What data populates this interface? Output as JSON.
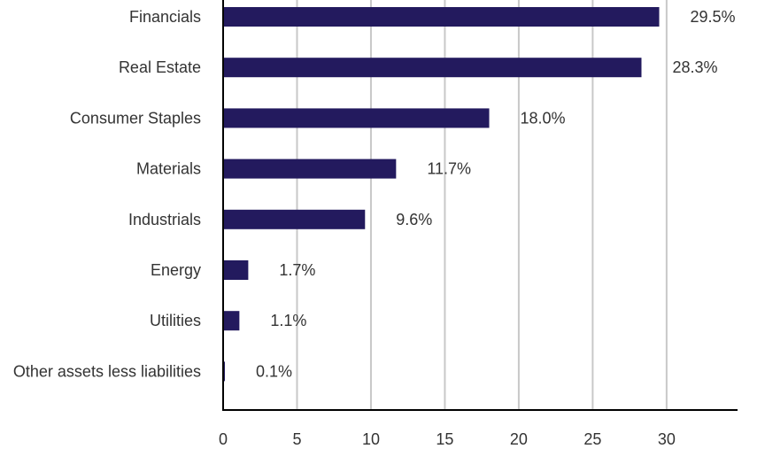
{
  "chart_data": {
    "type": "bar",
    "orientation": "horizontal",
    "categories": [
      "Financials",
      "Real Estate",
      "Consumer Staples",
      "Materials",
      "Industrials",
      "Energy",
      "Utilities",
      "Other assets less liabilities"
    ],
    "values": [
      29.5,
      28.3,
      18.0,
      11.7,
      9.6,
      1.7,
      1.1,
      0.1
    ],
    "value_labels": [
      "29.5%",
      "28.3%",
      "18.0%",
      "11.7%",
      "9.6%",
      "1.7%",
      "1.1%",
      "0.1%"
    ],
    "xticks": [
      0,
      5,
      10,
      15,
      20,
      25,
      30
    ],
    "xlim": [
      0,
      34.8
    ],
    "grid": "vertical",
    "bar_color": "#231a5e",
    "grid_color": "#c8c8c8",
    "axis_color": "#000000",
    "text_color": "#333333",
    "title": "",
    "xlabel": "",
    "ylabel": ""
  }
}
